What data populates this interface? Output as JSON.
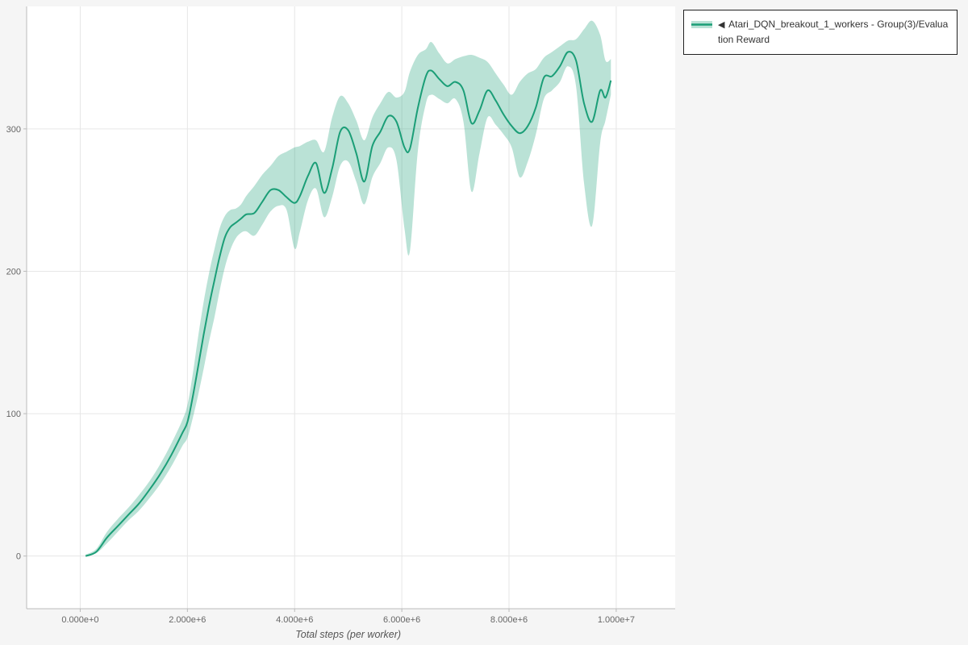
{
  "page": {
    "background": "#f5f5f5",
    "plot_background": "#ffffff"
  },
  "legend": {
    "collapse_icon": "◀",
    "label": "Atari_DQN_breakout_1_workers - Group(3)/Evaluation Reward",
    "border_color": "#222222"
  },
  "colors": {
    "line": "#1b9e77",
    "band": "rgba(27,158,119,0.30)",
    "grid": "#e6e6e6",
    "axis": "#bbbbbb",
    "tick_label": "#666666",
    "axis_title": "#555555"
  },
  "chart_data": {
    "type": "line",
    "title": "",
    "xlabel": "Total steps (per worker)",
    "ylabel": "",
    "grid": true,
    "legend_position": "top-right",
    "xlim": [
      -1000000.0,
      11100000.0
    ],
    "ylim": [
      -37,
      386
    ],
    "xticks": {
      "values": [
        0,
        2000000.0,
        4000000.0,
        6000000.0,
        8000000.0,
        10000000.0
      ],
      "labels": [
        "0.000e+0",
        "2.000e+6",
        "4.000e+6",
        "6.000e+6",
        "8.000e+6",
        "1.000e+7"
      ]
    },
    "yticks": {
      "values": [
        0,
        100,
        200,
        300
      ],
      "labels": [
        "0",
        "100",
        "200",
        "300"
      ]
    },
    "series": [
      {
        "name": "Atari_DQN_breakout_1_workers - Group(3)/Evaluation Reward",
        "x": [
          100000.0,
          300000.0,
          500000.0,
          700000.0,
          900000.0,
          1100000.0,
          1300000.0,
          1500000.0,
          1700000.0,
          1900000.0,
          2000000.0,
          2100000.0,
          2200000.0,
          2300000.0,
          2400000.0,
          2500000.0,
          2600000.0,
          2700000.0,
          2800000.0,
          2900000.0,
          3000000.0,
          3100000.0,
          3250000.0,
          3400000.0,
          3550000.0,
          3700000.0,
          3850000.0,
          4000000.0,
          4100000.0,
          4250000.0,
          4400000.0,
          4550000.0,
          4700000.0,
          4850000.0,
          5000000.0,
          5150000.0,
          5300000.0,
          5450000.0,
          5600000.0,
          5750000.0,
          5900000.0,
          6050000.0,
          6150000.0,
          6300000.0,
          6450000.0,
          6550000.0,
          6700000.0,
          6850000.0,
          7000000.0,
          7150000.0,
          7300000.0,
          7450000.0,
          7600000.0,
          7750000.0,
          7900000.0,
          8050000.0,
          8200000.0,
          8350000.0,
          8500000.0,
          8650000.0,
          8800000.0,
          8950000.0,
          9100000.0,
          9250000.0,
          9400000.0,
          9550000.0,
          9700000.0,
          9800000.0,
          9900000.0
        ],
        "mean": [
          0,
          3,
          13,
          21,
          29,
          37,
          47,
          58,
          71,
          86,
          94,
          112,
          133,
          155,
          175,
          193,
          210,
          224,
          231,
          234,
          237,
          240,
          241,
          249,
          257,
          257,
          252,
          248,
          253,
          267,
          276,
          255,
          272,
          298,
          299,
          283,
          263,
          288,
          298,
          309,
          305,
          287,
          286,
          315,
          337,
          341,
          335,
          330,
          333,
          327,
          304,
          313,
          327,
          320,
          310,
          302,
          297,
          302,
          315,
          336,
          337,
          344,
          354,
          348,
          318,
          305,
          327,
          322,
          334
        ],
        "lower": [
          0,
          2,
          9,
          17,
          25,
          32,
          41,
          51,
          63,
          77,
          83,
          97,
          113,
          131,
          150,
          167,
          186,
          203,
          215,
          223,
          227,
          228,
          225,
          233,
          242,
          246,
          243,
          216,
          228,
          250,
          258,
          238,
          252,
          274,
          277,
          263,
          247,
          266,
          276,
          287,
          278,
          230,
          214,
          285,
          318,
          324,
          321,
          318,
          321,
          305,
          256,
          283,
          308,
          303,
          296,
          287,
          266,
          277,
          296,
          321,
          327,
          333,
          344,
          330,
          262,
          232,
          290,
          306,
          324
        ],
        "upper": [
          1,
          5,
          17,
          26,
          34,
          43,
          53,
          65,
          79,
          95,
          106,
          128,
          154,
          178,
          198,
          215,
          230,
          239,
          243,
          244,
          247,
          253,
          260,
          268,
          274,
          281,
          284,
          287,
          288,
          291,
          292,
          284,
          308,
          323,
          318,
          306,
          292,
          308,
          318,
          326,
          322,
          326,
          340,
          352,
          356,
          361,
          353,
          346,
          349,
          351,
          352,
          350,
          347,
          339,
          331,
          324,
          333,
          339,
          342,
          350,
          354,
          358,
          362,
          363,
          370,
          376,
          366,
          348,
          349
        ]
      }
    ]
  }
}
